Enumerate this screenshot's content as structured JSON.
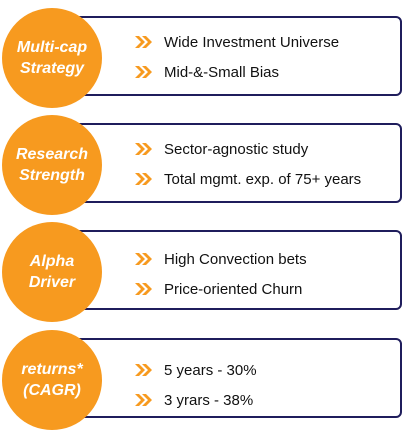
{
  "colors": {
    "accent": "#f79a1f",
    "border": "#1f1d5c",
    "text": "#111111"
  },
  "rows": [
    {
      "label": "Multi-cap\nStrategy",
      "points": [
        "Wide Investment Universe",
        "Mid-&-Small Bias"
      ]
    },
    {
      "label": "Research\nStrength",
      "points": [
        "Sector-agnostic study",
        "Total mgmt. exp. of 75+  years"
      ]
    },
    {
      "label": "Alpha\nDriver",
      "points": [
        "High Convection bets",
        "Price-oriented Churn"
      ]
    },
    {
      "label": "returns*\n(CAGR)",
      "points": [
        "5 years - 30%",
        "3 yrars - 38%"
      ]
    }
  ]
}
